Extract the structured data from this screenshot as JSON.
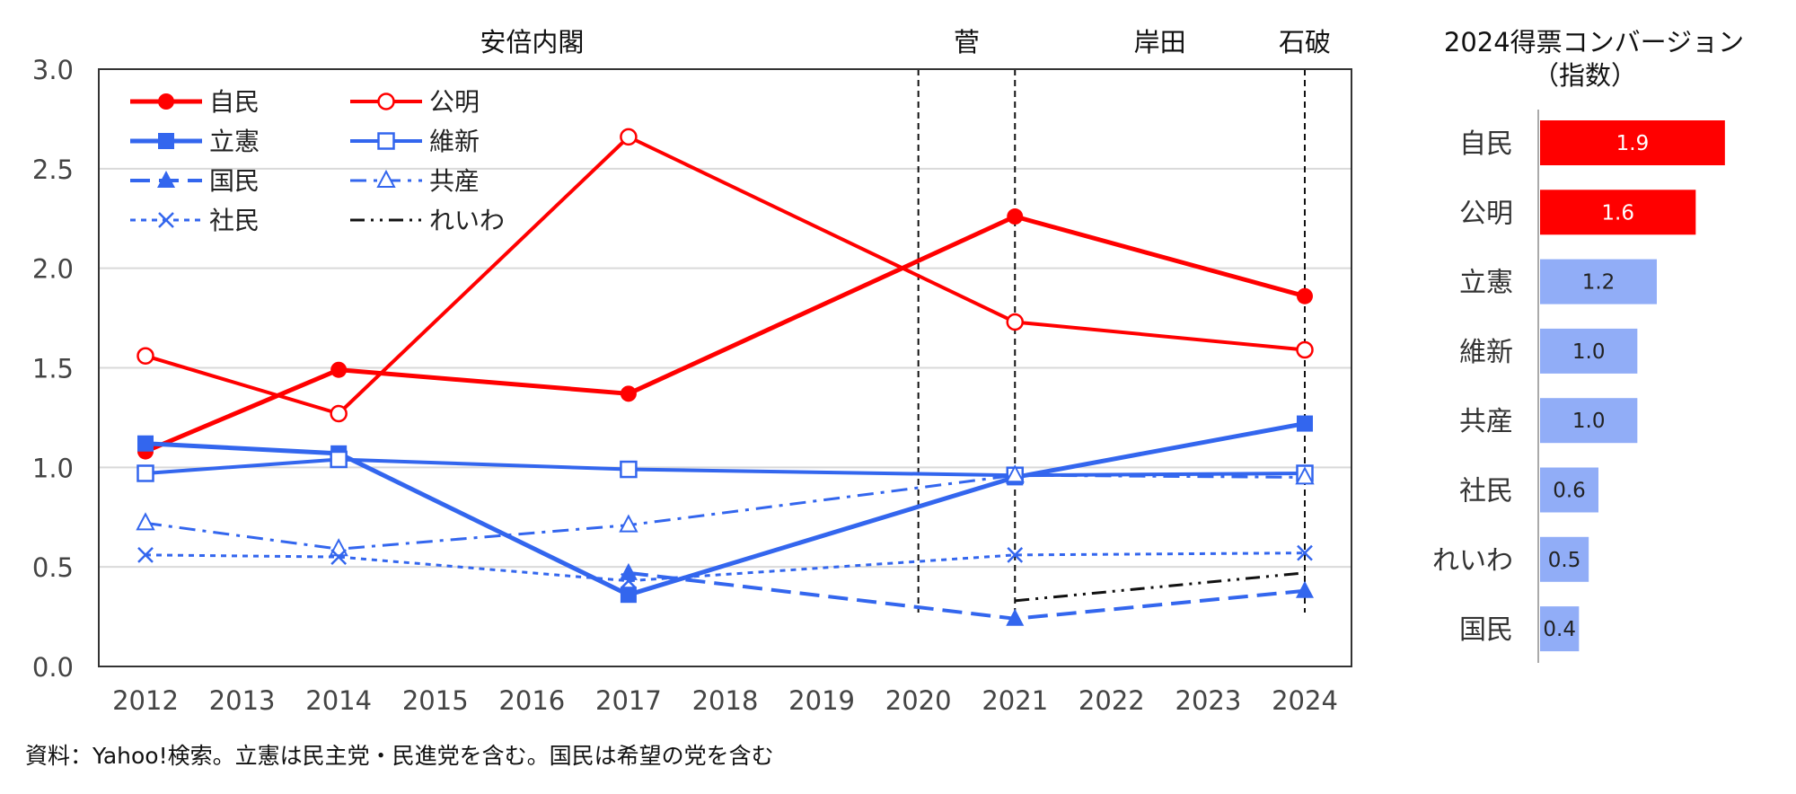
{
  "source_note": "資料：Yahoo!検索。立憲は民主党・民進党を含む。国民は希望の党を含む",
  "chart_data": [
    {
      "type": "line",
      "title": "",
      "xlabel": "",
      "ylabel": "",
      "x": [
        2012,
        2013,
        2014,
        2015,
        2016,
        2017,
        2018,
        2019,
        2020,
        2021,
        2022,
        2023,
        2024
      ],
      "xlim": [
        2012,
        2024
      ],
      "ylim": [
        0.0,
        3.0
      ],
      "yticks": [
        "0.0",
        "0.5",
        "1.0",
        "1.5",
        "2.0",
        "2.5",
        "3.0"
      ],
      "grid": true,
      "legend_position": "top-left",
      "eras": [
        {
          "label": "安倍内閣",
          "center": 2016
        },
        {
          "label": "菅",
          "center": 2020.5
        },
        {
          "label": "岸田",
          "center": 2022.5
        },
        {
          "label": "石破",
          "center": 2024
        }
      ],
      "era_dividers": [
        2020,
        2021,
        2024
      ],
      "series": [
        {
          "name": "自民",
          "color": "#ff0000",
          "style": "solid",
          "marker": "filled-circle",
          "width": 5,
          "points": [
            [
              2012,
              1.08
            ],
            [
              2014,
              1.49
            ],
            [
              2017,
              1.37
            ],
            [
              2021,
              2.26
            ],
            [
              2024,
              1.86
            ]
          ]
        },
        {
          "name": "公明",
          "color": "#ff0000",
          "style": "solid",
          "marker": "open-circle",
          "width": 4,
          "points": [
            [
              2012,
              1.56
            ],
            [
              2014,
              1.27
            ],
            [
              2017,
              2.66
            ],
            [
              2021,
              1.73
            ],
            [
              2024,
              1.59
            ]
          ]
        },
        {
          "name": "立憲",
          "color": "#3366ee",
          "style": "solid",
          "marker": "filled-square",
          "width": 5,
          "points": [
            [
              2012,
              1.12
            ],
            [
              2014,
              1.07
            ],
            [
              2017,
              0.36
            ],
            [
              2021,
              0.95
            ],
            [
              2024,
              1.22
            ]
          ]
        },
        {
          "name": "維新",
          "color": "#3366ee",
          "style": "solid",
          "marker": "open-square",
          "width": 4,
          "points": [
            [
              2012,
              0.97
            ],
            [
              2014,
              1.04
            ],
            [
              2017,
              0.99
            ],
            [
              2021,
              0.96
            ],
            [
              2024,
              0.97
            ]
          ]
        },
        {
          "name": "国民",
          "color": "#3366ee",
          "style": "dash",
          "marker": "filled-triangle",
          "width": 4,
          "points": [
            [
              2017,
              0.47
            ],
            [
              2021,
              0.24
            ],
            [
              2024,
              0.38
            ]
          ]
        },
        {
          "name": "共産",
          "color": "#3366ee",
          "style": "dashdot",
          "marker": "open-triangle",
          "width": 3,
          "points": [
            [
              2012,
              0.72
            ],
            [
              2014,
              0.59
            ],
            [
              2017,
              0.71
            ],
            [
              2021,
              0.96
            ],
            [
              2024,
              0.95
            ]
          ]
        },
        {
          "name": "社民",
          "color": "#3366ee",
          "style": "dot",
          "marker": "x",
          "width": 3,
          "points": [
            [
              2012,
              0.56
            ],
            [
              2014,
              0.55
            ],
            [
              2017,
              0.43
            ],
            [
              2021,
              0.56
            ],
            [
              2024,
              0.57
            ]
          ]
        },
        {
          "name": "れいわ",
          "color": "#111111",
          "style": "dashdotdot",
          "marker": "none",
          "width": 3,
          "points": [
            [
              2021,
              0.33
            ],
            [
              2024,
              0.47
            ]
          ]
        }
      ]
    },
    {
      "type": "bar",
      "orientation": "horizontal",
      "title": "2024得票コンバージョン",
      "subtitle": "（指数）",
      "xlim": [
        0,
        2.4
      ],
      "categories": [
        "自民",
        "公明",
        "立憲",
        "維新",
        "共産",
        "社民",
        "れいわ",
        "国民"
      ],
      "values": [
        1.9,
        1.6,
        1.2,
        1.0,
        1.0,
        0.6,
        0.5,
        0.4
      ],
      "value_labels": [
        "1.9",
        "1.6",
        "1.2",
        "1.0",
        "1.0",
        "0.6",
        "0.5",
        "0.4"
      ],
      "colors": [
        "#ff0000",
        "#ff0000",
        "#91adf7",
        "#91adf7",
        "#91adf7",
        "#91adf7",
        "#91adf7",
        "#91adf7"
      ],
      "label_colors": [
        "#ffffff",
        "#ffffff",
        "#222222",
        "#222222",
        "#222222",
        "#222222",
        "#222222",
        "#222222"
      ]
    }
  ]
}
